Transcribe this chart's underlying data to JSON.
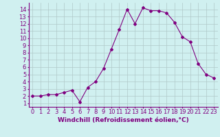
{
  "x": [
    0,
    1,
    2,
    3,
    4,
    5,
    6,
    7,
    8,
    9,
    10,
    11,
    12,
    13,
    14,
    15,
    16,
    17,
    18,
    19,
    20,
    21,
    22,
    23
  ],
  "y": [
    2,
    2,
    2.2,
    2.2,
    2.5,
    2.8,
    1.2,
    3.2,
    4.0,
    5.8,
    8.5,
    11.2,
    14.0,
    12.0,
    14.2,
    13.8,
    13.8,
    13.5,
    12.2,
    10.2,
    9.5,
    6.5,
    5.0,
    4.5
  ],
  "line_color": "#800080",
  "marker": "D",
  "marker_size": 2,
  "line_width": 0.8,
  "bg_color": "#d0f0f0",
  "grid_color": "#b0c8c8",
  "xlabel": "Windchill (Refroidissement éolien,°C)",
  "xlabel_fontsize": 6.5,
  "tick_fontsize": 6,
  "xlim": [
    -0.5,
    23.5
  ],
  "ylim": [
    0.5,
    14.9
  ],
  "yticks": [
    1,
    2,
    3,
    4,
    5,
    6,
    7,
    8,
    9,
    10,
    11,
    12,
    13,
    14
  ],
  "xticks": [
    0,
    1,
    2,
    3,
    4,
    5,
    6,
    7,
    8,
    9,
    10,
    11,
    12,
    13,
    14,
    15,
    16,
    17,
    18,
    19,
    20,
    21,
    22,
    23
  ]
}
